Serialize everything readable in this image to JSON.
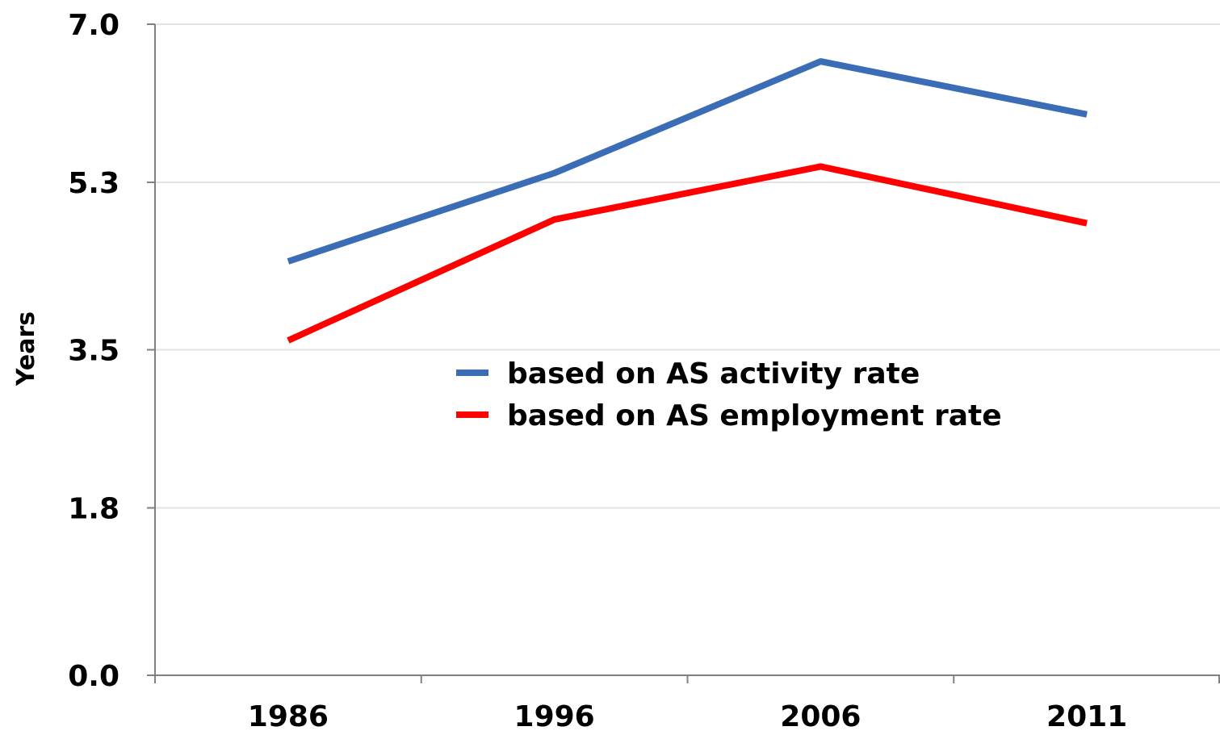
{
  "chart_data": {
    "type": "line",
    "title": "",
    "xlabel": "",
    "ylabel": "Years",
    "categories": [
      "1986",
      "1996",
      "2006",
      "2011"
    ],
    "yticks": [
      "0.0",
      "1.8",
      "3.5",
      "5.3",
      "7.0"
    ],
    "ylim": [
      0,
      7.0
    ],
    "grid": true,
    "legend_position": "center",
    "series": [
      {
        "name": "based on AS activity rate",
        "color": "#3a6db5",
        "values": [
          4.45,
          5.4,
          6.6,
          6.03
        ]
      },
      {
        "name": "based on AS employment rate",
        "color": "#ff0000",
        "values": [
          3.6,
          4.9,
          5.47,
          4.86
        ]
      }
    ]
  }
}
